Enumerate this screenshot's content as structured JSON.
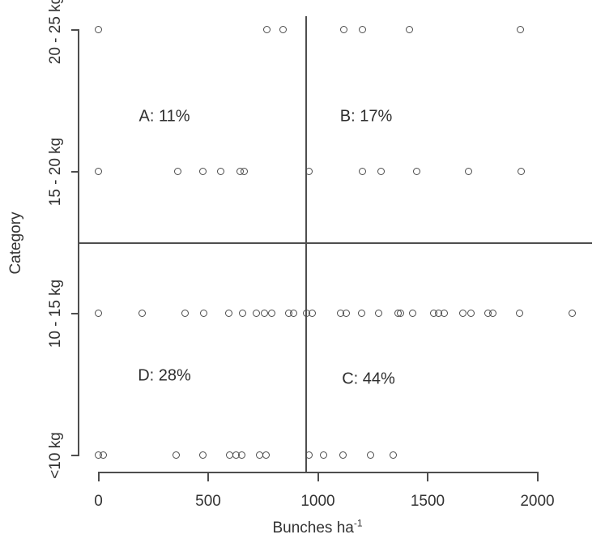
{
  "chart_data": {
    "type": "scatter",
    "title": "",
    "xlabel": "Bunches ha⁻¹",
    "xlabel_main": "Bunches ha",
    "xlabel_sup": "-1",
    "ylabel": "Category",
    "xlim": [
      0,
      2200
    ],
    "x_ticks": [
      "0",
      "500",
      "1000",
      "1500",
      "2000"
    ],
    "x_tick_values": [
      0,
      500,
      1000,
      1500,
      2000
    ],
    "y_categories_top_to_bottom": [
      "20 - 25 kg",
      "15 - 20 kg",
      "10 - 15 kg",
      "<10 kg"
    ],
    "marker": "open-circle",
    "grid": false,
    "legend": "none",
    "series": [
      {
        "name": "20 - 25 kg",
        "values": [
          0,
          770,
          842,
          1120,
          1204,
          1419,
          1924
        ]
      },
      {
        "name": "15 - 20 kg",
        "values": [
          0,
          363,
          477,
          558,
          648,
          666,
          961,
          1203,
          1289,
          1451,
          1688,
          1926
        ]
      },
      {
        "name": "10 - 15 kg",
        "values": [
          0,
          200,
          396,
          481,
          595,
          658,
          721,
          757,
          791,
          867,
          889,
          950,
          976,
          1104,
          1130,
          1200,
          1278,
          1366,
          1377,
          1433,
          1529,
          1551,
          1577,
          1662,
          1698,
          1776,
          1798,
          1920,
          2159
        ]
      },
      {
        "name": "<10 kg",
        "values": [
          0,
          22,
          355,
          477,
          598,
          628,
          655,
          735,
          765,
          960,
          1026,
          1115,
          1240,
          1345
        ]
      }
    ],
    "quadrants": [
      {
        "id": "A",
        "label": "A: 11%",
        "position": "upper-left"
      },
      {
        "id": "B",
        "label": "B: 17%",
        "position": "upper-right"
      },
      {
        "id": "D",
        "label": "D: 28%",
        "position": "lower-left"
      },
      {
        "id": "C",
        "label": "C: 44%",
        "position": "lower-right"
      }
    ],
    "reference_lines": {
      "vertical_x": 945,
      "horizontal_between_categories": [
        "15 - 20 kg",
        "10 - 15 kg"
      ]
    },
    "colors": {
      "background": "#ffffff",
      "axis": "#4e4e4e",
      "marker_stroke": "#4c4c4c",
      "text": "#333333",
      "reference_line": "#4e4e4e"
    }
  }
}
